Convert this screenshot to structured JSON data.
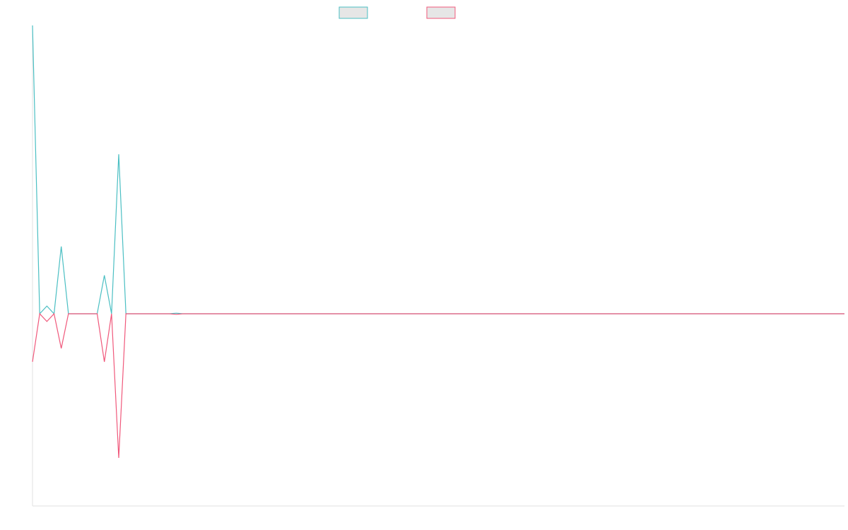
{
  "chart_data": {
    "type": "line",
    "title": "",
    "xlabel": "",
    "ylabel": "",
    "grid": false,
    "legend_placement": "top-center",
    "x_count": 114,
    "ylim": [
      -1,
      1.5
    ],
    "colors": {
      "series_a": "#4bbfc3",
      "series_b": "#f0587b",
      "legend_fill": "#e6e6e6",
      "axis": "#e0e0e0"
    },
    "series": [
      {
        "name": "",
        "color": "#4bbfc3",
        "points": [
          [
            0,
            1.5
          ],
          [
            1,
            0
          ],
          [
            2,
            0.04
          ],
          [
            3,
            0
          ],
          [
            4,
            0.35
          ],
          [
            5,
            0
          ],
          [
            6,
            0
          ],
          [
            7,
            0
          ],
          [
            8,
            0
          ],
          [
            9,
            0
          ],
          [
            10,
            0.2
          ],
          [
            11,
            0
          ],
          [
            12,
            0.83
          ],
          [
            13,
            0
          ],
          [
            14,
            0
          ],
          [
            19,
            0
          ],
          [
            20,
            0.003
          ],
          [
            21,
            0
          ],
          [
            113,
            0
          ]
        ]
      },
      {
        "name": "",
        "color": "#f0587b",
        "points": [
          [
            0,
            -0.25
          ],
          [
            1,
            0
          ],
          [
            2,
            -0.04
          ],
          [
            3,
            0
          ],
          [
            4,
            -0.18
          ],
          [
            5,
            0
          ],
          [
            6,
            0
          ],
          [
            7,
            0
          ],
          [
            8,
            0
          ],
          [
            9,
            0
          ],
          [
            10,
            -0.25
          ],
          [
            11,
            0
          ],
          [
            12,
            -0.75
          ],
          [
            13,
            0
          ],
          [
            14,
            0
          ],
          [
            19,
            0
          ],
          [
            20,
            -0.003
          ],
          [
            21,
            0
          ],
          [
            113,
            0
          ]
        ]
      }
    ]
  }
}
